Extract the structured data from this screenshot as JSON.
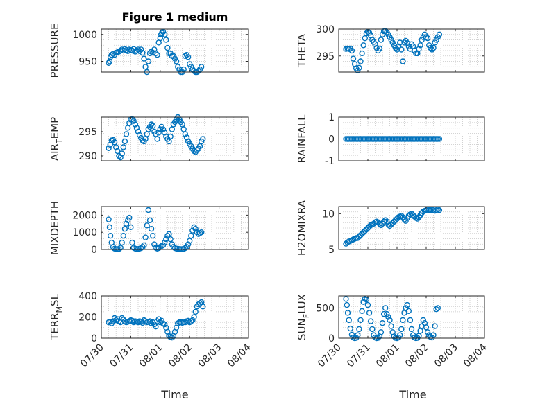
{
  "colors": {
    "marker": "#0072BD",
    "axis": "#262626",
    "grid": "#c6c6c6"
  },
  "title": "Figure 1 medium",
  "xlabel": "Time",
  "x_tick_labels": [
    "07/30",
    "07/31",
    "08/01",
    "08/02",
    "08/03",
    "08/04"
  ],
  "chart_data": [
    {
      "type": "scatter",
      "name": "PRESSURE",
      "ylabel": "PRESSURE",
      "ylim": [
        930,
        1010
      ],
      "yticks": [
        950,
        1000
      ],
      "ytick_labels": [
        "950",
        "1000"
      ],
      "xlim": [
        0,
        5
      ],
      "x": [
        0.25,
        0.28,
        0.31,
        0.35,
        0.4,
        0.45,
        0.5,
        0.55,
        0.6,
        0.65,
        0.7,
        0.75,
        0.8,
        0.85,
        0.9,
        0.95,
        1.0,
        1.05,
        1.1,
        1.15,
        1.2,
        1.25,
        1.3,
        1.35,
        1.4,
        1.45,
        1.5,
        1.55,
        1.6,
        1.65,
        1.7,
        1.75,
        1.8,
        1.85,
        1.9,
        1.95,
        2.0,
        2.03,
        2.06,
        2.1,
        2.15,
        2.2,
        2.25,
        2.3,
        2.35,
        2.4,
        2.45,
        2.5,
        2.55,
        2.6,
        2.65,
        2.7,
        2.75,
        2.8,
        2.85,
        2.9,
        2.95,
        3.0,
        3.05,
        3.1,
        3.15,
        3.2,
        3.25,
        3.3,
        3.35,
        3.4
      ],
      "y": [
        947,
        950,
        958,
        962,
        964,
        962,
        966,
        967,
        968,
        970,
        972,
        970,
        973,
        971,
        969,
        972,
        971,
        970,
        973,
        968,
        970,
        972,
        969,
        972,
        966,
        955,
        940,
        930,
        950,
        965,
        968,
        966,
        972,
        965,
        962,
        985,
        993,
        1000,
        1003,
        1005,
        1000,
        990,
        975,
        965,
        965,
        960,
        960,
        955,
        950,
        940,
        935,
        930,
        930,
        935,
        960,
        962,
        958,
        945,
        940,
        935,
        932,
        930,
        930,
        932,
        935,
        940
      ]
    },
    {
      "type": "scatter",
      "name": "THETA",
      "ylabel": "THETA",
      "ylim": [
        292,
        300
      ],
      "yticks": [
        295,
        300
      ],
      "ytick_labels": [
        "295",
        "300"
      ],
      "xlim": [
        0,
        5
      ],
      "x": [
        0.25,
        0.3,
        0.35,
        0.4,
        0.45,
        0.5,
        0.55,
        0.6,
        0.65,
        0.7,
        0.75,
        0.8,
        0.85,
        0.9,
        0.95,
        1.0,
        1.05,
        1.1,
        1.15,
        1.2,
        1.25,
        1.3,
        1.35,
        1.4,
        1.45,
        1.5,
        1.55,
        1.6,
        1.65,
        1.7,
        1.75,
        1.8,
        1.85,
        1.9,
        1.95,
        2.0,
        2.05,
        2.1,
        2.15,
        2.2,
        2.25,
        2.3,
        2.35,
        2.4,
        2.45,
        2.5,
        2.55,
        2.6,
        2.65,
        2.7,
        2.75,
        2.8,
        2.85,
        2.9,
        2.95,
        3.0,
        3.05,
        3.1,
        3.15,
        3.2,
        3.25,
        3.3,
        3.35,
        3.4,
        3.45
      ],
      "y": [
        296.3,
        296.4,
        296.3,
        296.4,
        296,
        294.5,
        293.5,
        292.7,
        292.3,
        292.8,
        294,
        295.5,
        297,
        298.3,
        299.2,
        299.5,
        299.3,
        298.8,
        298,
        297.6,
        297.2,
        296.5,
        296,
        296.4,
        298,
        299,
        299.6,
        299.7,
        299.4,
        299,
        298.5,
        298,
        297.5,
        297,
        296.5,
        296.2,
        296.8,
        297.5,
        296.2,
        294,
        297.5,
        297.8,
        297.4,
        296.8,
        296.3,
        297.2,
        296.8,
        296,
        295.5,
        295.5,
        296.3,
        297,
        298,
        298.5,
        299,
        298.5,
        298.3,
        297,
        296.5,
        296.2,
        296.5,
        297.5,
        298,
        298.5,
        299
      ]
    },
    {
      "type": "scatter",
      "name": "AIR_TEMP",
      "ylabel": "AIR",
      "ylabel_sub": "T",
      "ylabel_rest": "EMP",
      "ylim": [
        289,
        298
      ],
      "yticks": [
        290,
        295
      ],
      "ytick_labels": [
        "290",
        "295"
      ],
      "xlim": [
        0,
        5
      ],
      "x": [
        0.25,
        0.3,
        0.35,
        0.4,
        0.45,
        0.5,
        0.55,
        0.6,
        0.65,
        0.7,
        0.75,
        0.8,
        0.85,
        0.9,
        0.95,
        1.0,
        1.05,
        1.1,
        1.15,
        1.2,
        1.25,
        1.3,
        1.35,
        1.4,
        1.45,
        1.5,
        1.55,
        1.6,
        1.65,
        1.7,
        1.75,
        1.8,
        1.85,
        1.9,
        1.95,
        2.0,
        2.05,
        2.1,
        2.15,
        2.2,
        2.25,
        2.3,
        2.35,
        2.4,
        2.45,
        2.5,
        2.55,
        2.6,
        2.65,
        2.7,
        2.75,
        2.8,
        2.85,
        2.9,
        2.95,
        3.0,
        3.05,
        3.1,
        3.15,
        3.2,
        3.25,
        3.3,
        3.35,
        3.4,
        3.45
      ],
      "y": [
        291.6,
        292.3,
        293.2,
        293.3,
        292.8,
        291.8,
        291,
        290,
        289.7,
        290.5,
        291.8,
        293,
        294.5,
        295.8,
        296.8,
        297.5,
        297.6,
        297.2,
        296.5,
        295.8,
        295,
        294.3,
        293.7,
        293.2,
        293,
        293.5,
        294.5,
        295.5,
        296,
        296.5,
        296.2,
        295,
        294.5,
        293.5,
        294.8,
        295.5,
        296,
        295.5,
        294.8,
        294,
        293.5,
        293,
        294,
        295.5,
        296.5,
        297,
        297.5,
        298,
        297.5,
        297,
        296.5,
        295.5,
        294.5,
        293.8,
        293,
        292.5,
        292,
        291.5,
        291,
        290.8,
        291.2,
        291.5,
        292,
        293,
        293.5
      ]
    },
    {
      "type": "scatter",
      "name": "RAINFALL",
      "ylabel": "RAINFALL",
      "ylim": [
        -1,
        1
      ],
      "yticks": [
        -1,
        0,
        1
      ],
      "ytick_labels": [
        "-1",
        "0",
        "1"
      ],
      "xlim": [
        0,
        5
      ],
      "x": [
        0.25,
        0.3,
        0.35,
        0.4,
        0.45,
        0.5,
        0.55,
        0.6,
        0.65,
        0.7,
        0.75,
        0.8,
        0.85,
        0.9,
        0.95,
        1.0,
        1.05,
        1.1,
        1.15,
        1.2,
        1.25,
        1.3,
        1.35,
        1.4,
        1.45,
        1.5,
        1.55,
        1.6,
        1.65,
        1.7,
        1.75,
        1.8,
        1.85,
        1.9,
        1.95,
        2.0,
        2.05,
        2.1,
        2.15,
        2.2,
        2.25,
        2.3,
        2.35,
        2.4,
        2.45,
        2.5,
        2.55,
        2.6,
        2.65,
        2.7,
        2.75,
        2.8,
        2.85,
        2.9,
        2.95,
        3.0,
        3.05,
        3.1,
        3.15,
        3.2,
        3.25,
        3.3,
        3.35,
        3.4,
        3.45
      ],
      "y": [
        0,
        0,
        0,
        0,
        0,
        0,
        0,
        0,
        0,
        0,
        0,
        0,
        0,
        0,
        0,
        0,
        0,
        0,
        0,
        0,
        0,
        0,
        0,
        0,
        0,
        0,
        0,
        0,
        0,
        0,
        0,
        0,
        0,
        0,
        0,
        0,
        0,
        0,
        0,
        0,
        0,
        0,
        0,
        0,
        0,
        0,
        0,
        0,
        0,
        0,
        0,
        0,
        0,
        0,
        0,
        0,
        0,
        0,
        0,
        0,
        0,
        0,
        0,
        0,
        0
      ]
    },
    {
      "type": "scatter",
      "name": "MIXDEPTH",
      "ylabel": "MIXDEPTH",
      "ylim": [
        0,
        2500
      ],
      "yticks": [
        0,
        1000,
        2000
      ],
      "ytick_labels": [
        "0",
        "1000",
        "2000"
      ],
      "xlim": [
        0,
        5
      ],
      "x": [
        0.25,
        0.28,
        0.31,
        0.35,
        0.4,
        0.45,
        0.5,
        0.55,
        0.6,
        0.65,
        0.7,
        0.75,
        0.8,
        0.85,
        0.9,
        0.95,
        1.0,
        1.05,
        1.1,
        1.15,
        1.2,
        1.25,
        1.3,
        1.35,
        1.4,
        1.45,
        1.5,
        1.55,
        1.6,
        1.65,
        1.7,
        1.75,
        1.8,
        1.85,
        1.9,
        1.95,
        2.0,
        2.05,
        2.1,
        2.15,
        2.2,
        2.25,
        2.3,
        2.35,
        2.4,
        2.45,
        2.5,
        2.55,
        2.6,
        2.65,
        2.7,
        2.75,
        2.8,
        2.85,
        2.9,
        2.95,
        3.0,
        3.05,
        3.1,
        3.15,
        3.2,
        3.25,
        3.3,
        3.35,
        3.4
      ],
      "y": [
        1750,
        1300,
        800,
        400,
        150,
        50,
        20,
        20,
        30,
        100,
        400,
        800,
        1200,
        1500,
        1700,
        1850,
        1300,
        400,
        100,
        50,
        30,
        30,
        50,
        80,
        150,
        250,
        700,
        1400,
        2300,
        1700,
        1200,
        800,
        300,
        100,
        50,
        80,
        150,
        200,
        250,
        400,
        600,
        800,
        900,
        600,
        300,
        150,
        80,
        50,
        40,
        30,
        20,
        20,
        30,
        80,
        150,
        300,
        500,
        800,
        1100,
        1300,
        1200,
        1000,
        900,
        950,
        1000
      ]
    },
    {
      "type": "scatter",
      "name": "H2OMIXRA",
      "ylabel": "H2OMIXRA",
      "ylim": [
        5,
        11
      ],
      "yticks": [
        5,
        10
      ],
      "ytick_labels": [
        "5",
        "10"
      ],
      "xlim": [
        0,
        5
      ],
      "x": [
        0.25,
        0.3,
        0.35,
        0.4,
        0.45,
        0.5,
        0.55,
        0.6,
        0.65,
        0.7,
        0.75,
        0.8,
        0.85,
        0.9,
        0.95,
        1.0,
        1.05,
        1.1,
        1.15,
        1.2,
        1.25,
        1.3,
        1.35,
        1.4,
        1.45,
        1.5,
        1.55,
        1.6,
        1.65,
        1.7,
        1.75,
        1.8,
        1.85,
        1.9,
        1.95,
        2.0,
        2.05,
        2.1,
        2.15,
        2.2,
        2.25,
        2.3,
        2.35,
        2.4,
        2.45,
        2.5,
        2.55,
        2.6,
        2.65,
        2.7,
        2.75,
        2.8,
        2.85,
        2.9,
        2.95,
        3.0,
        3.05,
        3.1,
        3.15,
        3.2,
        3.25,
        3.3,
        3.35,
        3.4,
        3.45
      ],
      "y": [
        5.8,
        6.0,
        6.1,
        6.2,
        6.3,
        6.4,
        6.5,
        6.6,
        6.6,
        6.8,
        7.0,
        7.2,
        7.4,
        7.6,
        7.8,
        8.0,
        8.2,
        8.4,
        8.5,
        8.6,
        8.8,
        8.9,
        8.8,
        8.6,
        8.4,
        8.6,
        8.9,
        9.1,
        8.9,
        8.5,
        8.3,
        8.5,
        8.7,
        8.9,
        9.1,
        9.3,
        9.5,
        9.6,
        9.7,
        9.5,
        9.2,
        9.0,
        9.4,
        9.7,
        9.9,
        10.0,
        9.8,
        9.6,
        9.4,
        9.3,
        9.5,
        9.8,
        10.1,
        10.3,
        10.4,
        10.5,
        10.6,
        10.5,
        10.5,
        10.6,
        10.5,
        10.4,
        10.5,
        10.6,
        10.5
      ]
    },
    {
      "type": "scatter",
      "name": "TERR_MSL",
      "ylabel": "TERR",
      "ylabel_sub": "M",
      "ylabel_rest": "SL",
      "ylim": [
        0,
        400
      ],
      "yticks": [
        0,
        200,
        400
      ],
      "ytick_labels": [
        "0",
        "200",
        "400"
      ],
      "xlim": [
        0,
        5
      ],
      "x": [
        0.25,
        0.3,
        0.35,
        0.4,
        0.45,
        0.5,
        0.55,
        0.6,
        0.65,
        0.7,
        0.75,
        0.8,
        0.85,
        0.9,
        0.95,
        1.0,
        1.05,
        1.1,
        1.15,
        1.2,
        1.25,
        1.3,
        1.35,
        1.4,
        1.45,
        1.5,
        1.55,
        1.6,
        1.65,
        1.7,
        1.75,
        1.8,
        1.85,
        1.9,
        1.95,
        2.0,
        2.05,
        2.1,
        2.15,
        2.2,
        2.25,
        2.3,
        2.35,
        2.4,
        2.45,
        2.5,
        2.55,
        2.6,
        2.65,
        2.7,
        2.75,
        2.8,
        2.85,
        2.9,
        2.95,
        3.0,
        3.05,
        3.1,
        3.15,
        3.2,
        3.25,
        3.3,
        3.35,
        3.4,
        3.45
      ],
      "y": [
        150,
        155,
        140,
        160,
        190,
        170,
        180,
        160,
        150,
        190,
        175,
        160,
        150,
        155,
        160,
        170,
        165,
        150,
        160,
        155,
        150,
        160,
        155,
        145,
        170,
        160,
        150,
        155,
        160,
        140,
        150,
        130,
        110,
        160,
        180,
        150,
        165,
        140,
        130,
        100,
        60,
        20,
        10,
        5,
        20,
        60,
        100,
        140,
        150,
        150,
        145,
        155,
        150,
        160,
        165,
        150,
        160,
        170,
        200,
        250,
        300,
        320,
        330,
        340,
        300
      ]
    },
    {
      "type": "scatter",
      "name": "SUN_FLUX",
      "ylabel": "SUN",
      "ylabel_sub": "F",
      "ylabel_rest": "LUX",
      "ylim": [
        0,
        700
      ],
      "yticks": [
        0,
        500
      ],
      "ytick_labels": [
        "0",
        "500"
      ],
      "xlim": [
        0,
        5
      ],
      "x": [
        0.25,
        0.28,
        0.31,
        0.35,
        0.4,
        0.45,
        0.5,
        0.55,
        0.6,
        0.65,
        0.7,
        0.75,
        0.8,
        0.85,
        0.9,
        0.95,
        1.0,
        1.05,
        1.1,
        1.15,
        1.2,
        1.25,
        1.3,
        1.35,
        1.4,
        1.45,
        1.5,
        1.55,
        1.6,
        1.65,
        1.7,
        1.75,
        1.8,
        1.85,
        1.9,
        1.95,
        2.0,
        2.05,
        2.1,
        2.15,
        2.2,
        2.25,
        2.3,
        2.35,
        2.4,
        2.45,
        2.5,
        2.55,
        2.6,
        2.65,
        2.7,
        2.75,
        2.8,
        2.85,
        2.9,
        2.95,
        3.0,
        3.05,
        3.1,
        3.15,
        3.2,
        3.25,
        3.3,
        3.35,
        3.4
      ],
      "y": [
        650,
        550,
        420,
        300,
        160,
        60,
        10,
        0,
        5,
        50,
        150,
        300,
        450,
        600,
        650,
        640,
        550,
        420,
        280,
        150,
        50,
        10,
        0,
        5,
        30,
        100,
        250,
        400,
        500,
        400,
        350,
        300,
        200,
        100,
        30,
        5,
        0,
        10,
        50,
        150,
        300,
        420,
        500,
        550,
        450,
        300,
        150,
        50,
        10,
        0,
        5,
        40,
        120,
        200,
        300,
        250,
        180,
        100,
        50,
        20,
        10,
        50,
        200,
        480,
        500
      ]
    }
  ]
}
